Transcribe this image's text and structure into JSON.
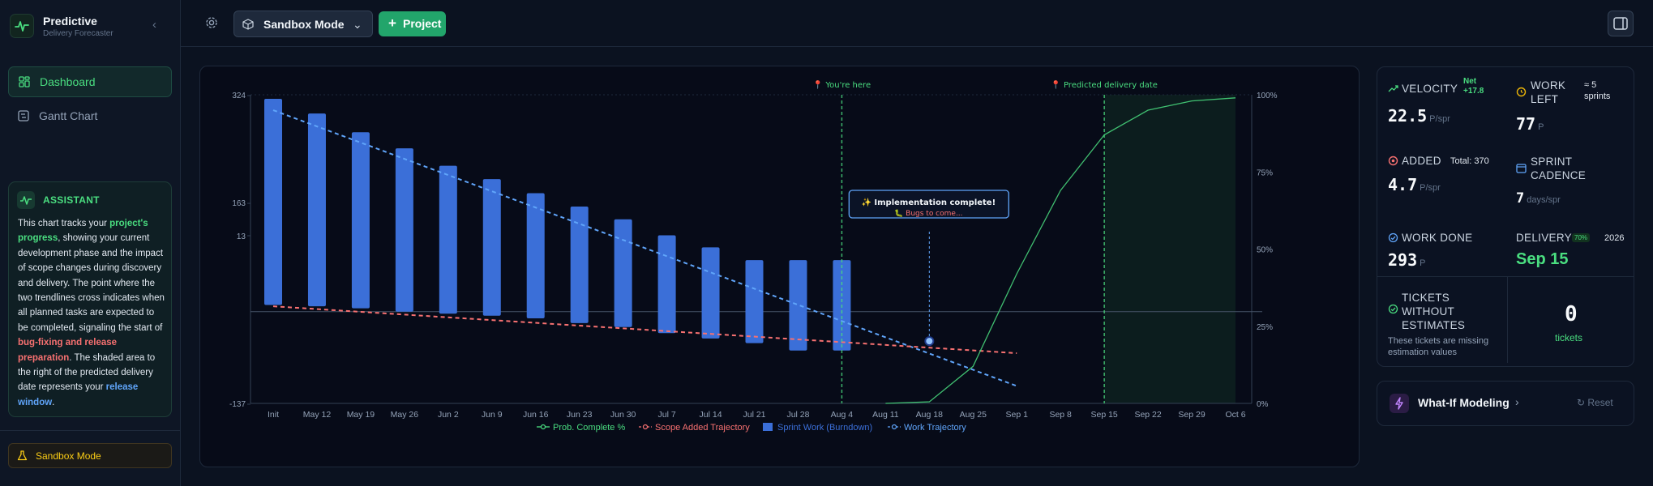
{
  "brand": {
    "title": "Predictive",
    "subtitle": "Delivery Forecaster"
  },
  "nav": {
    "items": [
      {
        "label": "Dashboard"
      },
      {
        "label": "Gantt Chart"
      }
    ]
  },
  "assistant": {
    "title": "ASSISTANT",
    "text": {
      "p1": "This chart tracks your ",
      "h1": "project's progress",
      "p2": ", showing your current development phase and the impact of scope changes during discovery and delivery. The point where the two trendlines cross indicates when all planned tasks are expected to be completed, signaling the start of ",
      "h2": "bug-fixing and release preparation",
      "p3": ". The shaded area to the right of the predicted delivery date represents your ",
      "h3": "release window",
      "p4": "."
    }
  },
  "sidebar_footer": {
    "mode_label": "Sandbox Mode"
  },
  "toolbar": {
    "mode": "Sandbox Mode",
    "project_button": "Project"
  },
  "stats": {
    "velocity": {
      "label": "VELOCITY",
      "net": "Net +17.8",
      "value": "22.5",
      "unit": "P/spr"
    },
    "work_left": {
      "label": "WORK LEFT",
      "sprints": "≈ 5 sprints",
      "value": "77",
      "unit": "P"
    },
    "added": {
      "label": "ADDED",
      "total": "Total: 370",
      "value": "4.7",
      "unit": "P/spr"
    },
    "cadence": {
      "label": "SPRINT CADENCE",
      "value": "7",
      "unit": "days/spr"
    },
    "work_done": {
      "label": "WORK DONE",
      "value": "293",
      "unit": "P"
    },
    "delivery": {
      "label": "DELIVERY",
      "badge": "70%",
      "year": "2026",
      "value": "Sep 15"
    },
    "tickets": {
      "label": "TICKETS WITHOUT ESTIMATES",
      "note": "These tickets are missing estimation values",
      "value": "0",
      "unit": "tickets"
    }
  },
  "whatif": {
    "title": "What-If Modeling",
    "reset": "Reset"
  },
  "chart_data": {
    "type": "bar",
    "categories": [
      "Init",
      "May 12",
      "May 19",
      "May 26",
      "Jun 2",
      "Jun 9",
      "Jun 16",
      "Jun 23",
      "Jun 30",
      "Jul 7",
      "Jul 14",
      "Jul 21",
      "Jul 28",
      "Aug 4",
      "Aug 11",
      "Aug 18",
      "Aug 25",
      "Sep 1",
      "Sep 8",
      "Sep 15",
      "Sep 22",
      "Sep 29",
      "Oct 6"
    ],
    "series": [
      {
        "name": "Sprint Work (Burndown)",
        "kind": "bar",
        "values": [
          [
            10,
            318
          ],
          [
            8,
            296
          ],
          [
            5,
            268
          ],
          [
            0,
            244
          ],
          [
            -3,
            218
          ],
          [
            -6,
            198
          ],
          [
            -10,
            177
          ],
          [
            -17,
            157
          ],
          [
            -23,
            138
          ],
          [
            -32,
            114
          ],
          [
            -40,
            96
          ],
          [
            -47,
            77
          ],
          [
            -58,
            77
          ],
          [
            -58,
            77
          ]
        ]
      },
      {
        "name": "Work Trajectory",
        "kind": "dashed-line",
        "color": "#60a5fa",
        "points": [
          [
            0,
            301
          ],
          [
            17,
            -111
          ]
        ]
      },
      {
        "name": "Scope Added Trajectory",
        "kind": "dashed-line",
        "color": "#f87171",
        "points": [
          [
            0,
            8
          ],
          [
            17,
            -62
          ]
        ]
      },
      {
        "name": "Prob. Complete %",
        "kind": "line-secondary-axis",
        "color": "#4ade80",
        "points": [
          [
            14,
            0
          ],
          [
            15,
            0.5
          ],
          [
            16,
            12
          ],
          [
            17,
            42
          ],
          [
            18,
            69
          ],
          [
            19,
            87
          ],
          [
            20,
            95
          ],
          [
            21,
            98
          ],
          [
            22,
            99
          ]
        ]
      }
    ],
    "y_ticks": [
      "324",
      "163",
      "13",
      "-137"
    ],
    "y2_ticks": [
      "100%",
      "75%",
      "50%",
      "25%",
      "0%"
    ],
    "ylim": [
      -137,
      324
    ],
    "y2lim": [
      0,
      100
    ],
    "zero_line": 0,
    "markers": [
      {
        "label": "📍 You're here",
        "x": 13,
        "color": "#4ade80"
      },
      {
        "label": "📍 Predicted delivery date",
        "x": 19,
        "color": "#4ade80"
      }
    ],
    "shade_from_x": 19,
    "crossover": {
      "x": 15,
      "y": -44
    },
    "tooltip": {
      "title": "✨ Implementation complete!",
      "subtitle": "🐛 Bugs to come..."
    },
    "legend": [
      "Prob. Complete %",
      "Scope Added Trajectory",
      "Sprint Work (Burndown)",
      "Work Trajectory"
    ],
    "legend_position": "bottom",
    "colors": {
      "bar": "#3b6fd8",
      "grid": "#1e293b",
      "axis_text": "#94a3b8"
    }
  }
}
